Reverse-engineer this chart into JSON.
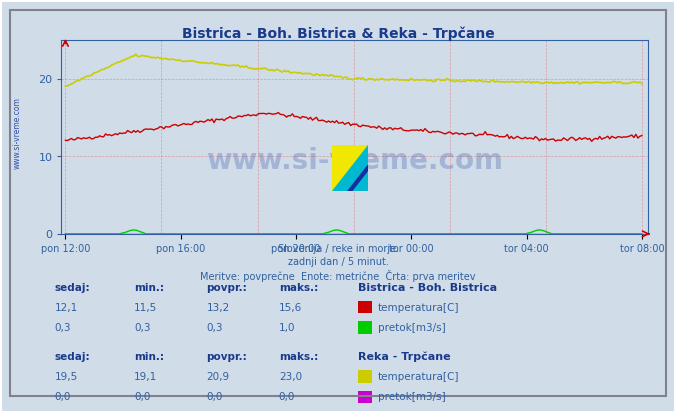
{
  "title": "Bistrica - Boh. Bistrica & Reka - Trpčane",
  "title_color": "#1a3a8c",
  "bg_color": "#d0dce8",
  "plot_bg_color": "#d0dce8",
  "grid_color_v": "#e08080",
  "grid_color_h": "#e08080",
  "axis_color": "#3060a0",
  "ylim": [
    0,
    25
  ],
  "yticks": [
    0,
    10,
    20
  ],
  "xtick_labels": [
    "pon 12:00",
    "pon 16:00",
    "pon 20:00",
    "tor 00:00",
    "tor 04:00",
    "tor 08:00"
  ],
  "watermark": "www.si-vreme.com",
  "watermark_color": "#2040a0",
  "subtitle_lines": [
    "Slovenija / reke in morje.",
    "zadnji dan / 5 minut.",
    "Meritve: povprečne  Enote: metrične  Črta: prva meritev"
  ],
  "subtitle_color": "#3060a0",
  "legend_title1": "Bistrica - Boh. Bistrica",
  "legend_title2": "Reka - Trpčane",
  "legend_color": "#1a3a8c",
  "table_header_color": "#1a3a8c",
  "table_value_color": "#3060a0",
  "col_headers": [
    "sedaj:",
    "min.:",
    "povpr.:",
    "maks.:"
  ],
  "bistrica_temp": {
    "sedaj": "12,1",
    "min": "11,5",
    "povpr": "13,2",
    "maks": "15,6",
    "label": "temperatura[C]",
    "color": "#cc0000"
  },
  "bistrica_flow": {
    "sedaj": "0,3",
    "min": "0,3",
    "povpr": "0,3",
    "maks": "1,0",
    "label": "pretok[m3/s]",
    "color": "#00cc00"
  },
  "reka_temp": {
    "sedaj": "19,5",
    "min": "19,1",
    "povpr": "20,9",
    "maks": "23,0",
    "label": "temperatura[C]",
    "color": "#cccc00"
  },
  "reka_flow": {
    "sedaj": "0,0",
    "min": "0,0",
    "povpr": "0,0",
    "maks": "0,0",
    "label": "pretok[m3/s]",
    "color": "#cc00cc"
  },
  "n_points": 288,
  "logo_colors": [
    "#f0e800",
    "#00b8c8",
    "#1030a0"
  ],
  "border_color": "#808080",
  "frame_color": "#a0a0c0"
}
